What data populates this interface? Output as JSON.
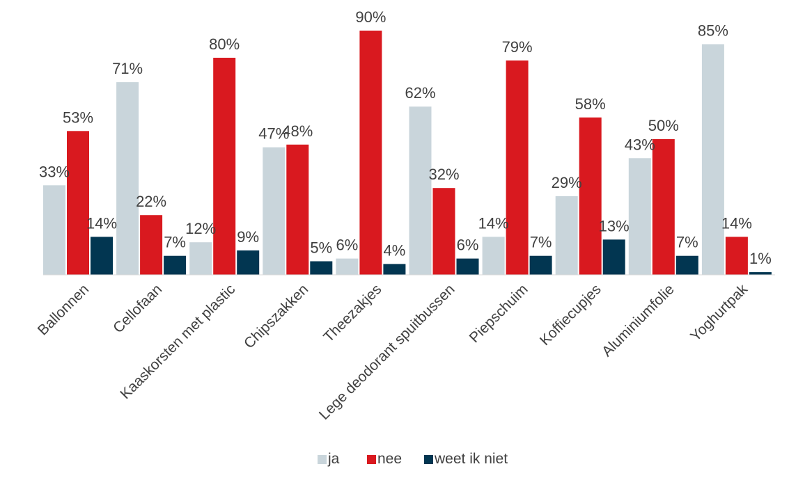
{
  "chart_data": {
    "type": "bar",
    "categories": [
      "Ballonnen",
      "Cellofaan",
      "Kaaskorsten met plastic",
      "Chipszakken",
      "Theezakjes",
      "Lege deodorant spuitbussen",
      "Piepschuim",
      "Koffiecupjes",
      "Aluminiumfolie",
      "Yoghurtpak"
    ],
    "series": [
      {
        "name": "ja",
        "color": "#c9d5db",
        "values": [
          33,
          71,
          12,
          47,
          6,
          62,
          14,
          29,
          43,
          85
        ],
        "labels": [
          "33%",
          "71%",
          "12%",
          "47%",
          "6%",
          "62%",
          "14%",
          "29%",
          "43%",
          "85%"
        ]
      },
      {
        "name": "nee",
        "color": "#d9191f",
        "values": [
          53,
          22,
          80,
          48,
          90,
          32,
          79,
          58,
          50,
          14
        ],
        "labels": [
          "53%",
          "22%",
          "80%",
          "48%",
          "90%",
          "32%",
          "79%",
          "58%",
          "50%",
          "14%"
        ]
      },
      {
        "name": "weet ik niet",
        "color": "#023651",
        "values": [
          14,
          7,
          9,
          5,
          4,
          6,
          7,
          13,
          7,
          1
        ],
        "labels": [
          "14%",
          "7%",
          "9%",
          "5%",
          "4%",
          "6%",
          "7%",
          "13%",
          "7%",
          "1%"
        ]
      }
    ],
    "ylim": [
      0,
      90
    ],
    "grid": false,
    "legend": "bottom-center"
  }
}
